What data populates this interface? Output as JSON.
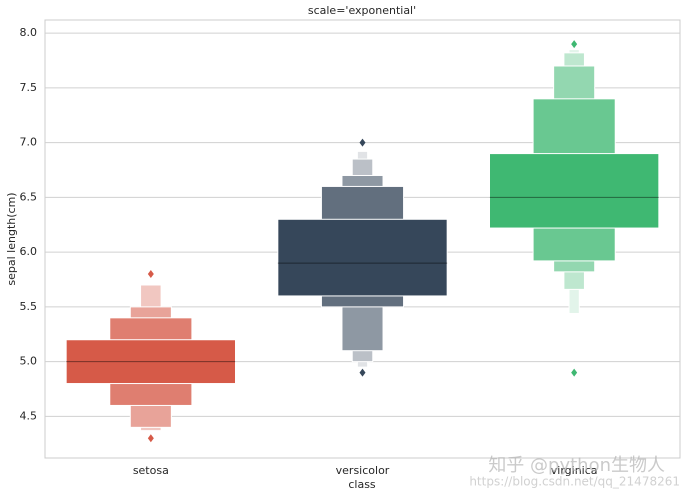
{
  "chart_data": {
    "type": "boxen",
    "title": "scale='exponential'",
    "xlabel": "class",
    "ylabel": "sepal length(cm)",
    "categories": [
      "setosa",
      "versicolor",
      "virginica"
    ],
    "colors": [
      "#d65a48",
      "#36475a",
      "#3fb872"
    ],
    "medians": [
      5.0,
      5.9,
      6.5
    ],
    "levels": [
      [
        {
          "low": 4.8,
          "high": 5.2
        },
        {
          "low": 4.6,
          "high": 5.4
        },
        {
          "low": 4.4,
          "high": 5.5
        },
        {
          "low": 4.37,
          "high": 5.7
        }
      ],
      [
        {
          "low": 5.6,
          "high": 6.3
        },
        {
          "low": 5.5,
          "high": 6.6
        },
        {
          "low": 5.1,
          "high": 6.7
        },
        {
          "low": 5.0,
          "high": 6.85
        },
        {
          "low": 4.95,
          "high": 6.92
        }
      ],
      [
        {
          "low": 6.22,
          "high": 6.9
        },
        {
          "low": 5.92,
          "high": 7.4
        },
        {
          "low": 5.82,
          "high": 7.7
        },
        {
          "low": 5.66,
          "high": 7.82
        },
        {
          "low": 5.44,
          "high": 7.85
        }
      ]
    ],
    "outliers": [
      [
        5.8,
        4.3
      ],
      [
        7.0,
        4.9
      ],
      [
        7.9,
        4.9
      ]
    ],
    "ylim": [
      4.12,
      8.12
    ],
    "yticks": [
      4.5,
      {
        "value": 5.0,
        "label": "5.0"
      },
      5.5,
      {
        "value": 6.0,
        "label": "6.0"
      },
      6.5,
      {
        "value": 7.0,
        "label": "7.0"
      },
      7.5,
      {
        "value": 8.0,
        "label": "8.0"
      }
    ],
    "grid": true,
    "watermark": "知乎 @python生物人",
    "watermark_url": "https://blog.csdn.net/qq_21478261"
  }
}
